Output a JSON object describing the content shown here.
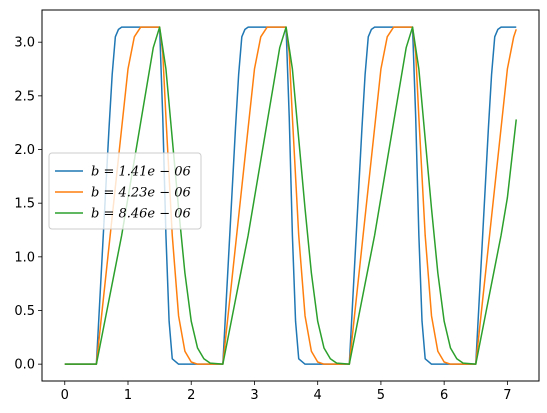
{
  "chart_data": {
    "type": "line",
    "title": "",
    "xlabel": "",
    "ylabel": "",
    "xlim": [
      -0.36,
      7.5
    ],
    "ylim": [
      -0.157,
      3.3
    ],
    "x_ticks": [
      0,
      1,
      2,
      3,
      4,
      5,
      6,
      7
    ],
    "x_tick_labels": [
      "0",
      "1",
      "2",
      "3",
      "4",
      "5",
      "6",
      "7"
    ],
    "y_ticks": [
      0.0,
      0.5,
      1.0,
      1.5,
      2.0,
      2.5,
      3.0
    ],
    "y_tick_labels": [
      "0.0",
      "0.5",
      "1.0",
      "1.5",
      "2.0",
      "2.5",
      "3.0"
    ],
    "grid": false,
    "legend_position": "center-left",
    "series": [
      {
        "name": "b = 1.41e − 06",
        "color": "#1f77b4",
        "x": [
          0,
          0.5,
          0.55,
          0.6,
          0.65,
          0.7,
          0.75,
          0.8,
          0.85,
          0.9,
          1.0,
          1.5,
          1.55,
          1.6,
          1.65,
          1.7,
          1.8,
          2.5,
          2.55,
          2.6,
          2.65,
          2.7,
          2.75,
          2.8,
          2.85,
          2.9,
          3.0,
          3.5,
          3.55,
          3.6,
          3.65,
          3.7,
          3.8,
          4.5,
          4.55,
          4.6,
          4.65,
          4.7,
          4.75,
          4.8,
          4.85,
          4.9,
          5.0,
          5.5,
          5.55,
          5.6,
          5.65,
          5.7,
          5.8,
          6.5,
          6.55,
          6.6,
          6.65,
          6.7,
          6.75,
          6.8,
          6.85,
          6.9,
          7.0,
          7.14
        ],
        "y": [
          0,
          0,
          0.55,
          1.1,
          1.65,
          2.2,
          2.7,
          3.05,
          3.12,
          3.14,
          3.14,
          3.14,
          2.3,
          1.2,
          0.4,
          0.05,
          0,
          0,
          0.55,
          1.1,
          1.65,
          2.2,
          2.7,
          3.05,
          3.12,
          3.14,
          3.14,
          3.14,
          2.3,
          1.2,
          0.4,
          0.05,
          0,
          0,
          0.55,
          1.1,
          1.65,
          2.2,
          2.7,
          3.05,
          3.12,
          3.14,
          3.14,
          3.14,
          2.3,
          1.2,
          0.4,
          0.05,
          0,
          0,
          0.55,
          1.1,
          1.65,
          2.2,
          2.7,
          3.05,
          3.12,
          3.14,
          3.14,
          3.14
        ]
      },
      {
        "name": "b = 4.23e − 06",
        "color": "#ff7f0e",
        "x": [
          0,
          0.5,
          0.6,
          0.7,
          0.8,
          0.9,
          1.0,
          1.1,
          1.2,
          1.5,
          1.55,
          1.6,
          1.7,
          1.8,
          1.9,
          2.0,
          2.1,
          2.5,
          2.6,
          2.7,
          2.8,
          2.9,
          3.0,
          3.1,
          3.2,
          3.5,
          3.55,
          3.6,
          3.7,
          3.8,
          3.9,
          4.0,
          4.1,
          4.5,
          4.6,
          4.7,
          4.8,
          4.9,
          5.0,
          5.1,
          5.2,
          5.5,
          5.55,
          5.6,
          5.7,
          5.8,
          5.9,
          6.0,
          6.1,
          6.5,
          6.6,
          6.7,
          6.8,
          6.9,
          7.0,
          7.1,
          7.14
        ],
        "y": [
          0,
          0,
          0.55,
          1.1,
          1.65,
          2.2,
          2.75,
          3.05,
          3.14,
          3.14,
          2.9,
          2.3,
          1.2,
          0.45,
          0.12,
          0.02,
          0,
          0,
          0.55,
          1.1,
          1.65,
          2.2,
          2.75,
          3.05,
          3.14,
          3.14,
          2.9,
          2.3,
          1.2,
          0.45,
          0.12,
          0.02,
          0,
          0,
          0.55,
          1.1,
          1.65,
          2.2,
          2.75,
          3.05,
          3.14,
          3.14,
          2.9,
          2.3,
          1.2,
          0.45,
          0.12,
          0.02,
          0,
          0,
          0.55,
          1.1,
          1.65,
          2.2,
          2.75,
          3.05,
          3.12
        ]
      },
      {
        "name": "b = 8.46e − 06",
        "color": "#2ca02c",
        "x": [
          0,
          0.5,
          0.6,
          0.7,
          0.8,
          0.9,
          1.0,
          1.1,
          1.2,
          1.3,
          1.4,
          1.5,
          1.6,
          1.7,
          1.8,
          1.9,
          2.0,
          2.1,
          2.2,
          2.3,
          2.5,
          2.6,
          2.7,
          2.8,
          2.9,
          3.0,
          3.1,
          3.2,
          3.3,
          3.4,
          3.5,
          3.6,
          3.7,
          3.8,
          3.9,
          4.0,
          4.1,
          4.2,
          4.3,
          4.5,
          4.6,
          4.7,
          4.8,
          4.9,
          5.0,
          5.1,
          5.2,
          5.3,
          5.4,
          5.5,
          5.6,
          5.7,
          5.8,
          5.9,
          6.0,
          6.1,
          6.2,
          6.3,
          6.5,
          6.6,
          6.7,
          6.8,
          6.9,
          7.0,
          7.14
        ],
        "y": [
          0,
          0,
          0.3,
          0.6,
          0.9,
          1.2,
          1.55,
          1.9,
          2.25,
          2.6,
          2.95,
          3.14,
          2.75,
          2.1,
          1.45,
          0.85,
          0.4,
          0.15,
          0.05,
          0.01,
          0,
          0.3,
          0.6,
          0.9,
          1.2,
          1.55,
          1.9,
          2.25,
          2.6,
          2.95,
          3.14,
          2.75,
          2.1,
          1.45,
          0.85,
          0.4,
          0.15,
          0.05,
          0.01,
          0,
          0.3,
          0.6,
          0.9,
          1.2,
          1.55,
          1.9,
          2.25,
          2.6,
          2.95,
          3.14,
          2.75,
          2.1,
          1.45,
          0.85,
          0.4,
          0.15,
          0.05,
          0.01,
          0,
          0.3,
          0.6,
          0.9,
          1.2,
          1.55,
          2.28
        ]
      }
    ]
  }
}
